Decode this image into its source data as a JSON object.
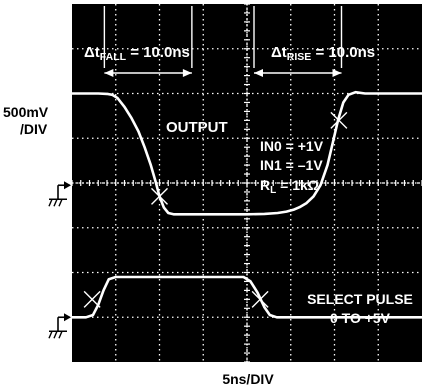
{
  "chart_data": {
    "type": "line",
    "xlabel": "5ns/DIV",
    "ylabel_value": "500mV",
    "ylabel_unit": "/DIV",
    "divisions": {
      "x": 8,
      "y": 8
    },
    "xlim": [
      0,
      40
    ],
    "series": [
      {
        "name": "OUTPUT",
        "x": [
          0,
          1.0,
          2.0,
          3.0,
          4.0,
          4.6,
          5.2,
          6.0,
          6.8,
          7.6,
          8.3,
          9.0,
          9.6,
          10.0,
          10.5,
          11.0,
          11.6,
          12.5,
          14,
          16,
          18,
          20,
          22,
          23.5,
          24.5,
          25.3,
          26.0,
          26.8,
          27.6,
          28.4,
          29.2,
          29.8,
          30.4,
          31.0,
          31.6,
          32.4,
          33.5,
          35,
          37,
          40
        ],
        "y": [
          2.0,
          2.0,
          2.0,
          2.0,
          1.99,
          1.97,
          1.9,
          1.7,
          1.45,
          1.15,
          0.8,
          0.4,
          0.0,
          -0.3,
          -0.55,
          -0.67,
          -0.7,
          -0.7,
          -0.7,
          -0.7,
          -0.7,
          -0.7,
          -0.69,
          -0.67,
          -0.64,
          -0.6,
          -0.54,
          -0.45,
          -0.3,
          -0.05,
          0.4,
          0.9,
          1.4,
          1.8,
          1.97,
          2.03,
          2.0,
          2.0,
          2.0,
          2.0
        ]
      },
      {
        "name": "SELECT PULSE",
        "x": [
          0,
          1.6,
          2.4,
          3.0,
          3.6,
          4.2,
          5,
          10,
          15,
          19.6,
          20.4,
          21.2,
          22.0,
          22.6,
          23.4,
          25,
          30,
          35,
          40
        ],
        "y": [
          -3.0,
          -3.0,
          -2.95,
          -2.72,
          -2.4,
          -2.15,
          -2.1,
          -2.1,
          -2.1,
          -2.1,
          -2.2,
          -2.45,
          -2.78,
          -2.95,
          -3.0,
          -3.0,
          -3.0,
          -3.0,
          -3.0
        ]
      }
    ],
    "markers": [
      {
        "x": 10.0,
        "y": -0.3
      },
      {
        "x": 30.5,
        "y": 1.4
      },
      {
        "x": 2.3,
        "y": -2.6
      },
      {
        "x": 21.5,
        "y": -2.6
      }
    ],
    "annotations": {
      "tfall_prefix": "Δt",
      "tfall_sub": "FALL",
      "tfall_value": " = 10.0ns",
      "trise_prefix": "Δt",
      "trise_sub": "RISE",
      "trise_value": " = 10.0ns",
      "output": "OUTPUT",
      "in0": "IN0 = +1V",
      "in1": "IN1 = –1V",
      "rl_prefix": "R",
      "rl_sub": "L",
      "rl_value": " = 1kΩ",
      "select_line1": "SELECT PULSE",
      "select_line2": "0 TO +5V"
    },
    "grid": true,
    "background_color": "#000000",
    "trace_color": "#ffffff"
  }
}
